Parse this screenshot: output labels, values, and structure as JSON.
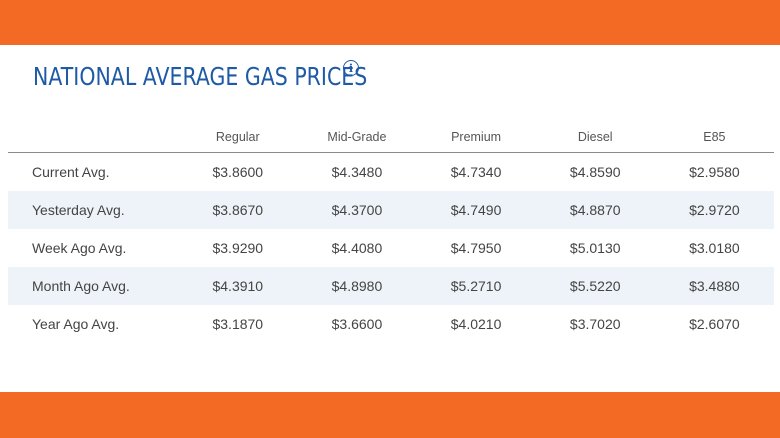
{
  "title": "NATIONAL AVERAGE GAS PRICES",
  "info_icon": "info-icon",
  "colors": {
    "accent_band": "#f26a24",
    "title": "#1f5aa6",
    "alt_row": "#edf3f8"
  },
  "table": {
    "columns": [
      "",
      "Regular",
      "Mid-Grade",
      "Premium",
      "Diesel",
      "E85"
    ],
    "rows": [
      {
        "label": "Current Avg.",
        "values": [
          "$3.8600",
          "$4.3480",
          "$4.7340",
          "$4.8590",
          "$2.9580"
        ]
      },
      {
        "label": "Yesterday Avg.",
        "values": [
          "$3.8670",
          "$4.3700",
          "$4.7490",
          "$4.8870",
          "$2.9720"
        ]
      },
      {
        "label": "Week Ago Avg.",
        "values": [
          "$3.9290",
          "$4.4080",
          "$4.7950",
          "$5.0130",
          "$3.0180"
        ]
      },
      {
        "label": "Month Ago Avg.",
        "values": [
          "$4.3910",
          "$4.8980",
          "$5.2710",
          "$5.5220",
          "$3.4880"
        ]
      },
      {
        "label": "Year Ago Avg.",
        "values": [
          "$3.1870",
          "$3.6600",
          "$4.0210",
          "$3.7020",
          "$2.6070"
        ]
      }
    ]
  }
}
